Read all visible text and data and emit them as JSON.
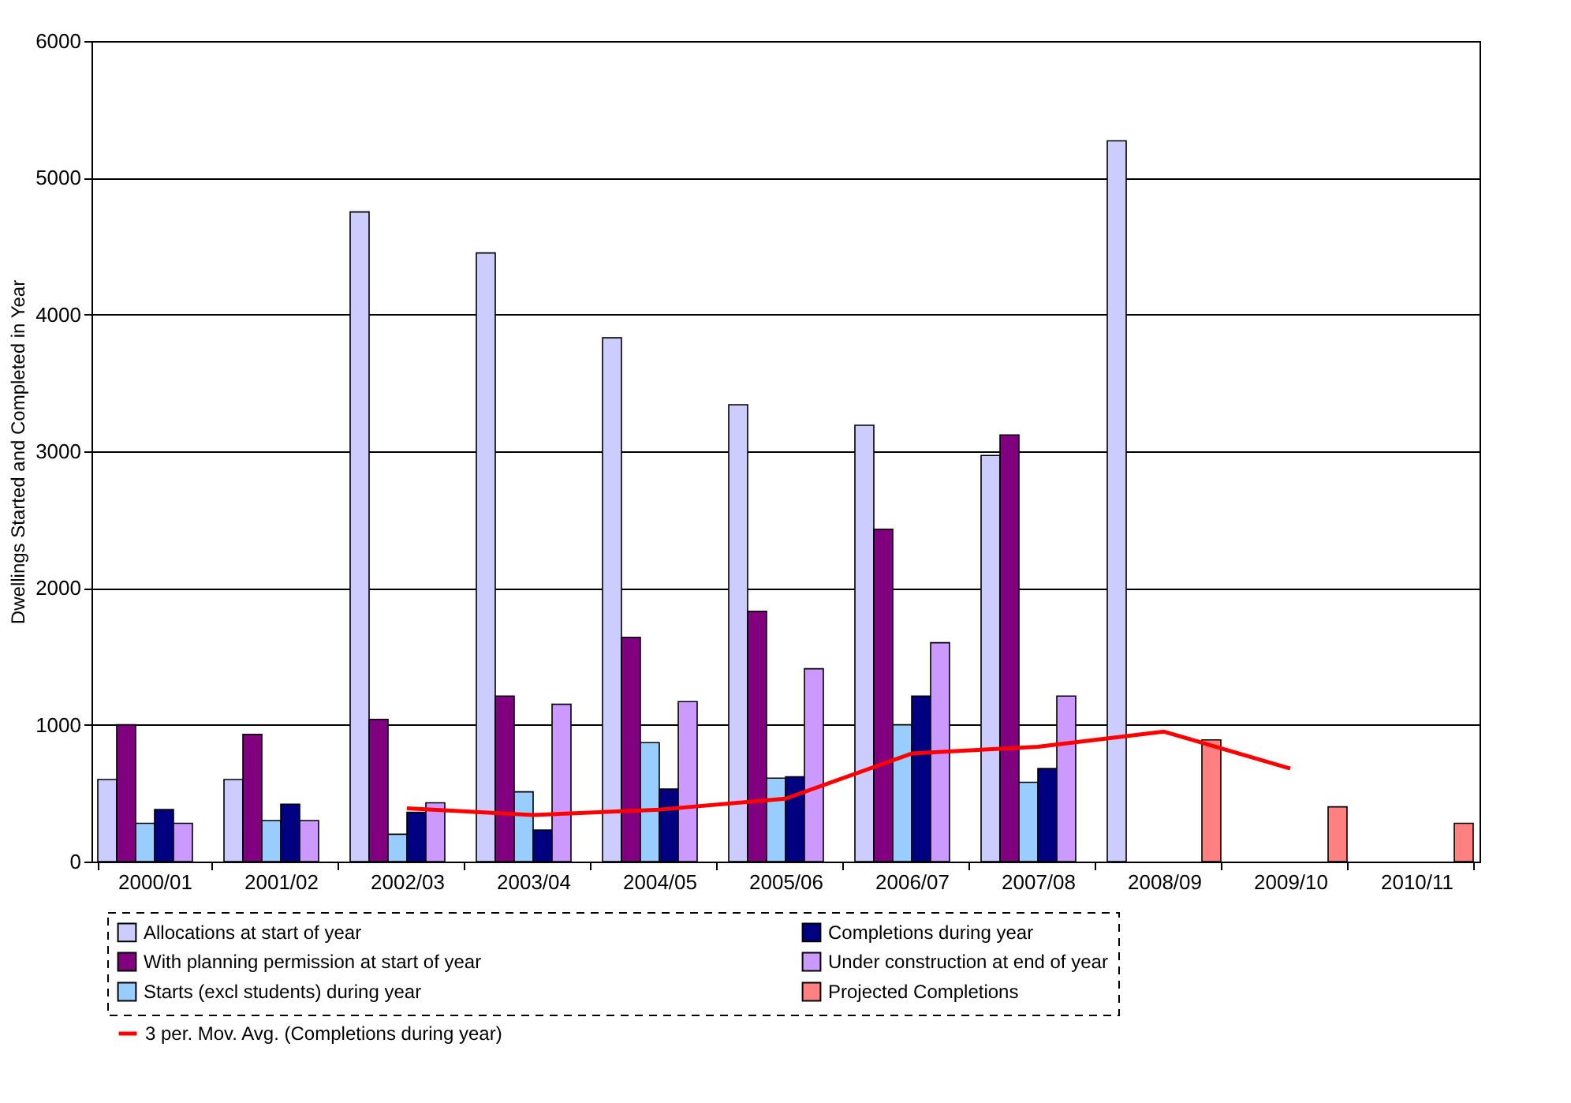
{
  "chart_data": {
    "type": "bar",
    "ylabel": "Dwellings Started and Completed in Year",
    "categories": [
      "2000/01",
      "2001/02",
      "2002/03",
      "2003/04",
      "2004/05",
      "2005/06",
      "2006/07",
      "2007/08",
      "2008/09",
      "2009/10",
      "2010/11"
    ],
    "series": [
      {
        "name": "Allocations at start of year",
        "color": "#ccccff",
        "values": [
          600,
          600,
          4750,
          4450,
          3830,
          3340,
          3190,
          2970,
          5270,
          null,
          null
        ]
      },
      {
        "name": "With planning permission at start of year",
        "color": "#800080",
        "values": [
          1000,
          930,
          1040,
          1210,
          1640,
          1830,
          2430,
          3120,
          null,
          null,
          null
        ]
      },
      {
        "name": "Starts (excl students) during year",
        "color": "#99ccff",
        "values": [
          280,
          300,
          200,
          510,
          870,
          610,
          1000,
          580,
          null,
          null,
          null
        ]
      },
      {
        "name": "Completions during year",
        "color": "#000080",
        "values": [
          380,
          420,
          360,
          230,
          530,
          620,
          1210,
          680,
          null,
          null,
          null
        ]
      },
      {
        "name": "Under construction at end of year",
        "color": "#cc99ff",
        "values": [
          280,
          300,
          430,
          1150,
          1170,
          1410,
          1600,
          1210,
          null,
          null,
          null
        ]
      },
      {
        "name": "Projected Completions",
        "color": "#ff8080",
        "values": [
          null,
          null,
          null,
          null,
          null,
          null,
          null,
          null,
          890,
          400,
          280
        ]
      },
      {
        "name": "3 per. Mov. Avg. (Completions during year)",
        "color": "#ff0000",
        "type": "line",
        "values": [
          null,
          null,
          390,
          340,
          380,
          460,
          790,
          840,
          950,
          680,
          null
        ]
      }
    ],
    "ylim": [
      0,
      6000
    ],
    "yticks": [
      0,
      1000,
      2000,
      3000,
      4000,
      5000,
      6000
    ],
    "grid": "y",
    "legend": "bottom"
  }
}
